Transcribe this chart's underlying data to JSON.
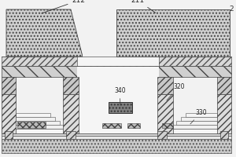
{
  "bg_color": "#f2f2f2",
  "ec": "#555555",
  "lw": 0.5,
  "top_hatch": "....",
  "pillar_hatch": "////",
  "bottom_hatch": "....",
  "cross_hatch": "xxxx"
}
